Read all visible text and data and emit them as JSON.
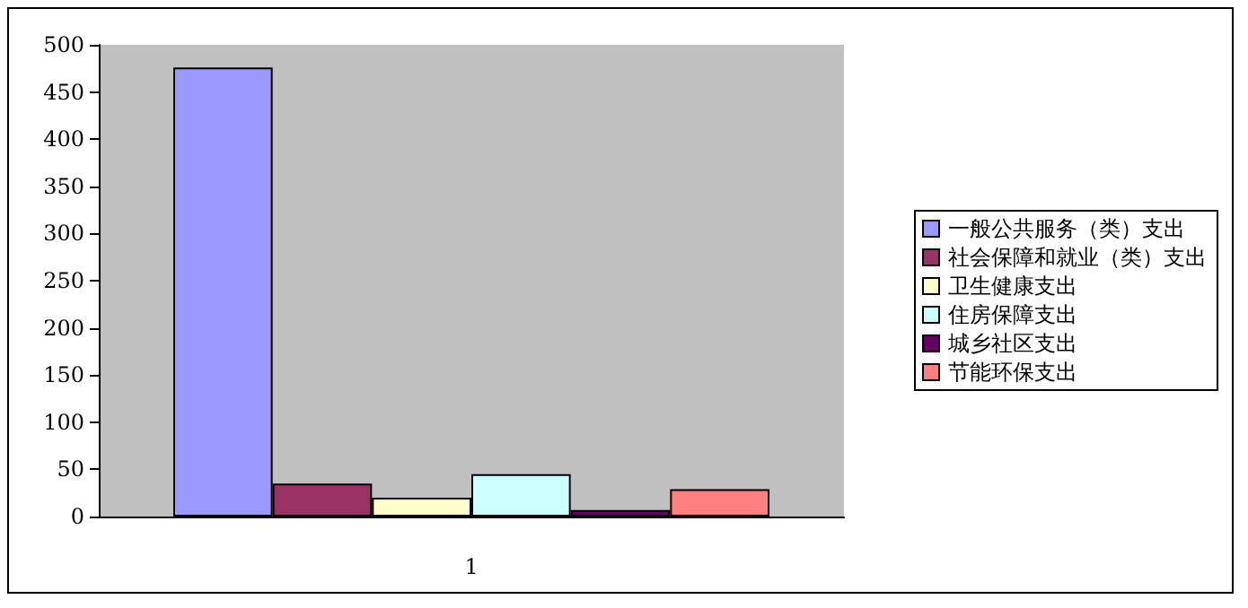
{
  "chart_data": {
    "type": "bar",
    "categories": [
      "1"
    ],
    "series": [
      {
        "name": "一般公共服务（类）支出",
        "color": "#9999ff",
        "values": [
          476
        ]
      },
      {
        "name": "社会保障和就业（类）支出",
        "color": "#993366",
        "values": [
          35
        ]
      },
      {
        "name": "卫生健康支出",
        "color": "#ffffcc",
        "values": [
          20
        ]
      },
      {
        "name": "住房保障支出",
        "color": "#ccffff",
        "values": [
          45
        ]
      },
      {
        "name": "城乡社区支出",
        "color": "#660066",
        "values": [
          7
        ]
      },
      {
        "name": "节能环保支出",
        "color": "#ff8080",
        "values": [
          29
        ]
      }
    ],
    "ylim": [
      0,
      500
    ],
    "yticks": [
      0,
      50,
      100,
      150,
      200,
      250,
      300,
      350,
      400,
      450,
      500
    ],
    "grid": false,
    "legend": "right"
  }
}
